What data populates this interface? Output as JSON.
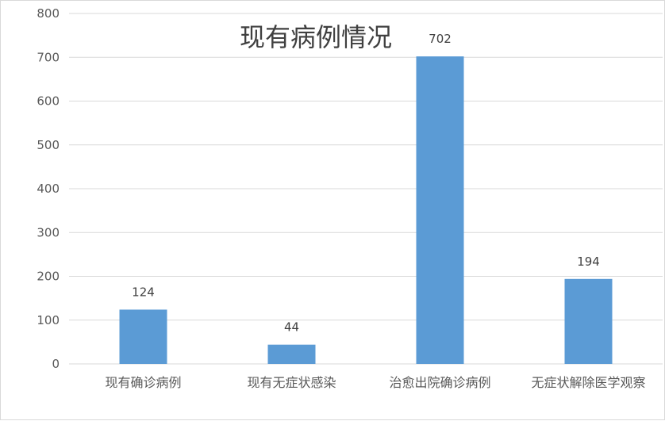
{
  "chart_data": {
    "type": "bar",
    "title": "现有病例情况",
    "categories": [
      "现有确诊病例",
      "现有无症状感染",
      "治愈出院确诊病例",
      "无症状解除医学观察"
    ],
    "series": [
      {
        "values": [
          124,
          44,
          702,
          194
        ],
        "color": "#5b9bd5"
      }
    ],
    "ylim": [
      0,
      800
    ],
    "yticks": [
      0,
      100,
      200,
      300,
      400,
      500,
      600,
      700,
      800
    ],
    "grid": true,
    "legend": "none",
    "data_labels": true,
    "gridline_color": "#d9d9d9"
  }
}
